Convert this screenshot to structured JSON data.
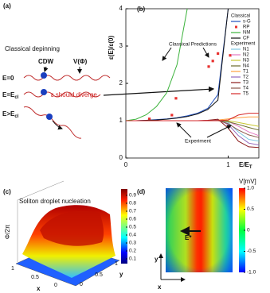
{
  "panel_labels": [
    "(a)",
    "(b)",
    "(c)",
    "(d)"
  ],
  "panel_a": {
    "title": "Classical depinning",
    "cdw": "CDW",
    "potential": "V(Φ)",
    "note": "ε should diverge",
    "rows": [
      {
        "label": "E=0"
      },
      {
        "label": "E=E",
        "sub": "cl"
      },
      {
        "label": "E>E",
        "sub": "cl"
      }
    ]
  },
  "chart_data": {
    "type": "line",
    "y_label": "ε(E)/ε(0)",
    "x_label": "E/E",
    "x_label_sub": "T",
    "annotations": [
      "Classical Predictions",
      "Experiment"
    ],
    "legend_groups": [
      "Classical",
      "Experiment"
    ],
    "xlim": [
      0,
      1.3
    ],
    "xticks": [
      0,
      1
    ],
    "ylim": [
      0,
      4
    ],
    "yticks": [
      0,
      1,
      2,
      3,
      4
    ],
    "x": [
      0,
      0.1,
      0.2,
      0.3,
      0.4,
      0.5,
      0.6,
      0.7,
      0.8,
      0.9,
      1.0,
      1.1,
      1.2,
      1.3
    ],
    "series": [
      {
        "name": "s-G",
        "color": "#1f4fbf",
        "marker": "line",
        "values": [
          1,
          1,
          1.01,
          1.03,
          1.05,
          1.08,
          1.13,
          1.2,
          1.33,
          1.7,
          4,
          null,
          null,
          null
        ]
      },
      {
        "name": "RP",
        "color": "#e8312f",
        "marker": "square",
        "x": [
          0.23,
          0.45,
          0.49,
          0.81,
          0.85,
          0.9,
          1.02
        ],
        "values": [
          1.05,
          1.15,
          1.6,
          2.45,
          2.6,
          2.8,
          2.75
        ]
      },
      {
        "name": "NM",
        "color": "#3cb33c",
        "marker": "line",
        "values": [
          1,
          1.04,
          1.16,
          1.38,
          1.75,
          2.5,
          4,
          null,
          null,
          null,
          null,
          null,
          null,
          null
        ]
      },
      {
        "name": "CF",
        "color": "#111111",
        "marker": "line",
        "values": [
          1,
          1,
          1.01,
          1.02,
          1.04,
          1.07,
          1.11,
          1.18,
          1.3,
          1.55,
          4,
          null,
          null,
          null
        ]
      },
      {
        "name": "N1",
        "color": "#7ec8e3",
        "marker": "line",
        "values": [
          1,
          1,
          1,
          1,
          1,
          1,
          1,
          1,
          1,
          1.03,
          0.95,
          0.7,
          0.5,
          0.45
        ]
      },
      {
        "name": "N2",
        "color": "#e377c2",
        "marker": "line",
        "values": [
          1,
          1,
          1,
          1,
          1,
          1,
          1,
          1,
          1.01,
          1.02,
          0.98,
          0.85,
          0.7,
          0.6
        ]
      },
      {
        "name": "N3",
        "color": "#c8c832",
        "marker": "line",
        "values": [
          1,
          1,
          1,
          1,
          1,
          1,
          1,
          1,
          1,
          1.01,
          1,
          0.95,
          0.9,
          0.85
        ]
      },
      {
        "name": "N4",
        "color": "#6b6b2a",
        "marker": "line",
        "values": [
          1,
          1,
          1,
          1,
          1,
          1,
          1,
          1,
          1,
          1,
          0.97,
          0.9,
          0.82,
          0.75
        ]
      },
      {
        "name": "T1",
        "color": "#ff9f40",
        "marker": "line",
        "values": [
          1,
          1,
          1,
          1,
          1,
          1,
          1,
          1,
          1,
          1.02,
          1.05,
          1.08,
          1.1,
          1.1
        ]
      },
      {
        "name": "T2",
        "color": "#9467bd",
        "marker": "line",
        "values": [
          1,
          1,
          1,
          1,
          1,
          1,
          1,
          1,
          1,
          1.02,
          0.9,
          0.6,
          0.4,
          0.35
        ]
      },
      {
        "name": "T3",
        "color": "#8b1a1a",
        "marker": "line",
        "values": [
          1,
          1,
          1,
          1,
          1,
          1,
          1,
          1,
          1.01,
          1.04,
          0.8,
          0.45,
          0.3,
          0.28
        ]
      },
      {
        "name": "T4",
        "color": "#8c564b",
        "marker": "line",
        "values": [
          1,
          1,
          1,
          1,
          1,
          1,
          1,
          1,
          1,
          1.01,
          0.92,
          0.75,
          0.62,
          0.55
        ]
      },
      {
        "name": "T5",
        "color": "#d62728",
        "marker": "line",
        "values": [
          1,
          1,
          1,
          1,
          1,
          1,
          1,
          1,
          1,
          1,
          1.02,
          1.15,
          1.2,
          1.2
        ]
      }
    ]
  },
  "panel_c": {
    "title": "Soliton droplet nucleation",
    "z_label": "Φ/2π",
    "x_label": "x",
    "y_label": "y",
    "x_ticks": [
      1,
      0.5,
      0
    ],
    "y_ticks": [
      0,
      0.5,
      1
    ],
    "colorbar_lim": [
      0.04,
      0.98
    ],
    "colorbar_ticks": [
      0.1,
      0.2,
      0.3,
      0.4,
      0.5,
      0.6,
      0.7,
      0.8,
      0.9
    ]
  },
  "panel_d": {
    "colorbar_title": "V[mV]",
    "field_label": "E*",
    "x_label": "x",
    "y_label": "y",
    "colorbar_lim": [
      -1,
      1
    ],
    "colorbar_ticks": [
      {
        "value": 1,
        "label": "1.0"
      },
      0.5,
      0,
      -0.5,
      {
        "value": -1,
        "label": "-1.0"
      }
    ]
  }
}
